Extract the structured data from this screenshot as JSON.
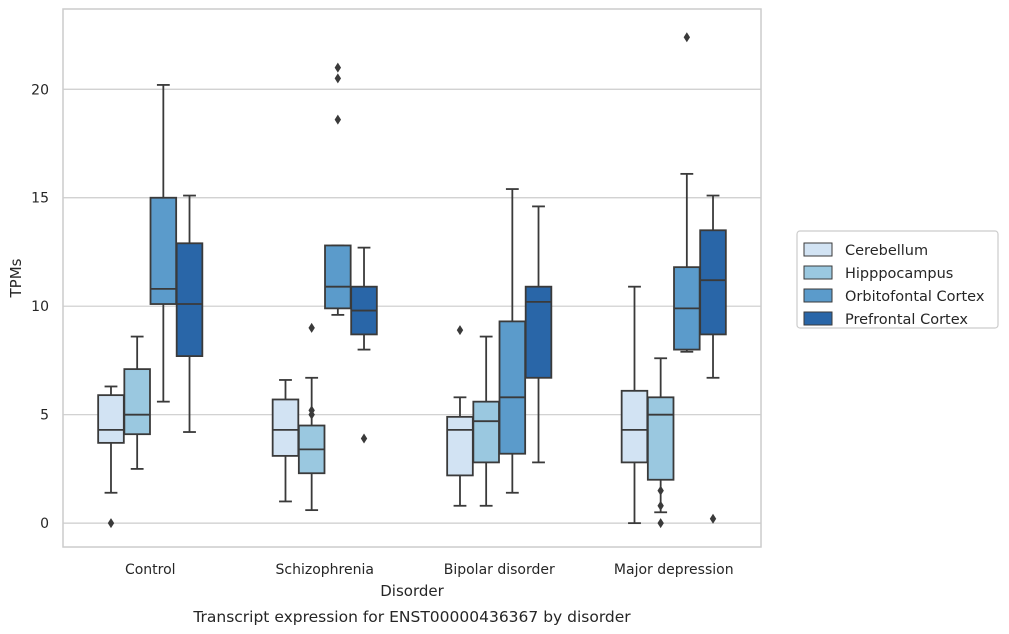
{
  "chart_data": {
    "type": "box",
    "xlabel": "Disorder",
    "ylabel": "TPMs",
    "caption": "Transcript expression for ENST00000436367 by disorder",
    "ylim": [
      -1.1,
      23.7
    ],
    "yticks": [
      0,
      5,
      10,
      15,
      20
    ],
    "grid": "horizontal",
    "legend_position": "right",
    "categories": [
      "Control",
      "Schizophrenia",
      "Bipolar disorder",
      "Major depression"
    ],
    "series": [
      {
        "name": "Cerebellum",
        "color": "#d2e3f3",
        "boxes": [
          {
            "whislo": 1.4,
            "q1": 3.7,
            "med": 4.3,
            "q3": 5.9,
            "whishi": 6.3,
            "fliers": [
              0.0
            ]
          },
          {
            "whislo": 1.0,
            "q1": 3.1,
            "med": 4.3,
            "q3": 5.7,
            "whishi": 6.6,
            "fliers": []
          },
          {
            "whislo": 0.8,
            "q1": 2.2,
            "med": 4.3,
            "q3": 4.9,
            "whishi": 5.8,
            "fliers": [
              8.9
            ]
          },
          {
            "whislo": 0.0,
            "q1": 2.8,
            "med": 4.3,
            "q3": 6.1,
            "whishi": 10.9,
            "fliers": []
          }
        ]
      },
      {
        "name": "Hipppocampus",
        "color": "#9ac8e0",
        "boxes": [
          {
            "whislo": 2.5,
            "q1": 4.1,
            "med": 5.0,
            "q3": 7.1,
            "whishi": 8.6,
            "fliers": []
          },
          {
            "whislo": 0.6,
            "q1": 2.3,
            "med": 3.4,
            "q3": 4.5,
            "whishi": 6.7,
            "fliers": [
              9.0,
              5.2,
              5.0
            ]
          },
          {
            "whislo": 0.8,
            "q1": 2.8,
            "med": 4.7,
            "q3": 5.6,
            "whishi": 8.6,
            "fliers": []
          },
          {
            "whislo": 0.5,
            "q1": 2.0,
            "med": 5.0,
            "q3": 5.8,
            "whishi": 7.6,
            "fliers": [
              1.5,
              0.8,
              0.0
            ]
          }
        ]
      },
      {
        "name": "Orbitofontal Cortex",
        "color": "#5b9bcb",
        "boxes": [
          {
            "whislo": 5.6,
            "q1": 10.1,
            "med": 10.8,
            "q3": 15.0,
            "whishi": 20.2,
            "fliers": []
          },
          {
            "whislo": 9.6,
            "q1": 9.9,
            "med": 10.9,
            "q3": 12.8,
            "whishi": 12.8,
            "fliers": [
              21.0,
              20.5,
              18.6
            ]
          },
          {
            "whislo": 1.4,
            "q1": 3.2,
            "med": 5.8,
            "q3": 9.3,
            "whishi": 15.4,
            "fliers": []
          },
          {
            "whislo": 7.9,
            "q1": 8.0,
            "med": 9.9,
            "q3": 11.8,
            "whishi": 16.1,
            "fliers": [
              22.4
            ]
          }
        ]
      },
      {
        "name": "Prefrontal Cortex",
        "color": "#2966a8",
        "boxes": [
          {
            "whislo": 4.2,
            "q1": 7.7,
            "med": 10.1,
            "q3": 12.9,
            "whishi": 15.1,
            "fliers": []
          },
          {
            "whislo": 8.0,
            "q1": 8.7,
            "med": 9.8,
            "q3": 10.9,
            "whishi": 12.7,
            "fliers": [
              3.9
            ]
          },
          {
            "whislo": 2.8,
            "q1": 6.7,
            "med": 10.2,
            "q3": 10.9,
            "whishi": 14.6,
            "fliers": []
          },
          {
            "whislo": 6.7,
            "q1": 8.7,
            "med": 11.2,
            "q3": 13.5,
            "whishi": 15.1,
            "fliers": [
              0.2
            ]
          }
        ]
      }
    ]
  }
}
